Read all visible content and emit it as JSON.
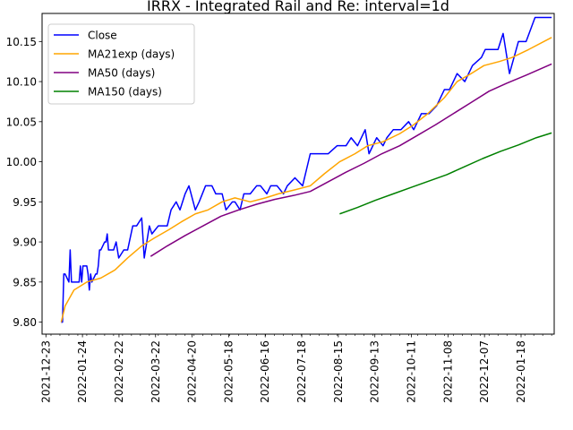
{
  "chart_data": {
    "type": "line",
    "title": "IRRX - Integrated Rail and Re: interval=1d",
    "xlabel": "",
    "ylabel": "",
    "x_ticks": [
      "2021-12-23",
      "2022-01-24",
      "2022-02-22",
      "2022-03-22",
      "2022-04-20",
      "2022-05-18",
      "2022-06-16",
      "2022-07-18",
      "2022-08-15",
      "2022-09-13",
      "2022-10-11",
      "2022-11-08",
      "2022-12-07",
      "2022-01-18"
    ],
    "y_ticks": [
      "9.80",
      "9.85",
      "9.90",
      "9.95",
      "10.00",
      "10.05",
      "10.10",
      "10.15"
    ],
    "ylim": [
      9.785,
      10.185
    ],
    "xlim": [
      "2021-12-20",
      "2023-01-25"
    ],
    "legend_position": "top-left",
    "grid": false,
    "series": [
      {
        "name": "Close",
        "color": "#0000ff",
        "x": [
          "2022-01-04",
          "2022-01-05",
          "2022-01-06",
          "2022-01-07",
          "2022-01-10",
          "2022-01-11",
          "2022-01-12",
          "2022-01-13",
          "2022-01-14",
          "2022-01-18",
          "2022-01-19",
          "2022-01-20",
          "2022-01-21",
          "2022-01-24",
          "2022-01-25",
          "2022-01-26",
          "2022-01-27",
          "2022-01-28",
          "2022-01-31",
          "2022-02-01",
          "2022-02-02",
          "2022-02-03",
          "2022-02-04",
          "2022-02-07",
          "2022-02-08",
          "2022-02-09",
          "2022-02-10",
          "2022-02-14",
          "2022-02-16",
          "2022-02-18",
          "2022-02-22",
          "2022-02-25",
          "2022-03-01",
          "2022-03-04",
          "2022-03-08",
          "2022-03-10",
          "2022-03-14",
          "2022-03-16",
          "2022-03-21",
          "2022-03-24",
          "2022-03-28",
          "2022-03-31",
          "2022-04-04",
          "2022-04-07",
          "2022-04-11",
          "2022-04-14",
          "2022-04-19",
          "2022-04-22",
          "2022-04-27",
          "2022-05-02",
          "2022-05-05",
          "2022-05-10",
          "2022-05-13",
          "2022-05-18",
          "2022-05-20",
          "2022-05-24",
          "2022-05-27",
          "2022-06-01",
          "2022-06-06",
          "2022-06-09",
          "2022-06-14",
          "2022-06-17",
          "2022-06-22",
          "2022-06-27",
          "2022-06-30",
          "2022-07-06",
          "2022-07-12",
          "2022-07-18",
          "2022-07-21",
          "2022-07-26",
          "2022-08-01",
          "2022-08-08",
          "2022-08-15",
          "2022-08-19",
          "2022-08-24",
          "2022-08-30",
          "2022-09-02",
          "2022-09-08",
          "2022-09-13",
          "2022-09-16",
          "2022-09-21",
          "2022-09-27",
          "2022-10-03",
          "2022-10-07",
          "2022-10-13",
          "2022-10-19",
          "2022-10-25",
          "2022-10-31",
          "2022-11-04",
          "2022-11-10",
          "2022-11-16",
          "2022-11-22",
          "2022-11-29",
          "2022-12-02",
          "2022-12-07",
          "2022-12-12",
          "2022-12-16",
          "2022-12-21",
          "2022-12-28",
          "2023-01-03",
          "2023-01-10",
          "2023-01-18",
          "2023-01-23"
        ],
        "y": [
          9.8,
          9.8,
          9.86,
          9.86,
          9.85,
          9.89,
          9.85,
          9.85,
          9.85,
          9.85,
          9.87,
          9.85,
          9.87,
          9.87,
          9.86,
          9.84,
          9.86,
          9.85,
          9.86,
          9.86,
          9.87,
          9.89,
          9.89,
          9.9,
          9.9,
          9.91,
          9.89,
          9.89,
          9.9,
          9.88,
          9.89,
          9.89,
          9.92,
          9.92,
          9.93,
          9.88,
          9.92,
          9.91,
          9.92,
          9.92,
          9.92,
          9.94,
          9.95,
          9.94,
          9.96,
          9.97,
          9.94,
          9.95,
          9.97,
          9.97,
          9.96,
          9.96,
          9.94,
          9.95,
          9.95,
          9.94,
          9.96,
          9.96,
          9.97,
          9.97,
          9.96,
          9.97,
          9.97,
          9.96,
          9.97,
          9.98,
          9.97,
          10.01,
          10.01,
          10.01,
          10.01,
          10.02,
          10.02,
          10.03,
          10.02,
          10.04,
          10.01,
          10.03,
          10.02,
          10.03,
          10.04,
          10.04,
          10.05,
          10.04,
          10.06,
          10.06,
          10.07,
          10.09,
          10.09,
          10.11,
          10.1,
          10.12,
          10.13,
          10.14,
          10.14,
          10.14,
          10.16,
          10.11,
          10.15,
          10.15,
          10.18,
          10.18,
          10.18
        ]
      },
      {
        "name": "MA21exp (days)",
        "color": "#ffa500",
        "x": [
          "2022-01-04",
          "2022-01-07",
          "2022-01-14",
          "2022-01-24",
          "2022-02-04",
          "2022-02-15",
          "2022-02-25",
          "2022-03-08",
          "2022-03-18",
          "2022-03-29",
          "2022-04-08",
          "2022-04-19",
          "2022-04-29",
          "2022-05-10",
          "2022-05-20",
          "2022-06-01",
          "2022-06-13",
          "2022-06-23",
          "2022-07-06",
          "2022-07-18",
          "2022-07-29",
          "2022-08-10",
          "2022-08-22",
          "2022-09-01",
          "2022-09-13",
          "2022-09-26",
          "2022-10-06",
          "2022-10-18",
          "2022-10-31",
          "2022-11-10",
          "2022-11-21",
          "2022-12-01",
          "2022-12-13",
          "2022-12-23",
          "2023-01-05",
          "2023-01-23"
        ],
        "y": [
          9.8,
          9.82,
          9.84,
          9.85,
          9.855,
          9.865,
          9.88,
          9.895,
          9.905,
          9.915,
          9.925,
          9.935,
          9.94,
          9.95,
          9.955,
          9.95,
          9.955,
          9.96,
          9.965,
          9.97,
          9.985,
          10.0,
          10.01,
          10.02,
          10.025,
          10.035,
          10.045,
          10.06,
          10.08,
          10.1,
          10.11,
          10.12,
          10.125,
          10.13,
          10.14,
          10.155
        ]
      },
      {
        "name": "MA50 (days)",
        "color": "#800080",
        "x": [
          "2022-03-15",
          "2022-03-28",
          "2022-04-11",
          "2022-04-25",
          "2022-05-09",
          "2022-05-23",
          "2022-06-06",
          "2022-06-20",
          "2022-07-05",
          "2022-07-18",
          "2022-08-01",
          "2022-08-15",
          "2022-08-29",
          "2022-09-12",
          "2022-09-26",
          "2022-10-10",
          "2022-10-24",
          "2022-11-07",
          "2022-11-21",
          "2022-12-05",
          "2022-12-19",
          "2023-01-03",
          "2023-01-23"
        ],
        "y": [
          9.882,
          9.895,
          9.908,
          9.92,
          9.932,
          9.94,
          9.947,
          9.953,
          9.958,
          9.963,
          9.975,
          9.987,
          9.998,
          10.01,
          10.02,
          10.033,
          10.046,
          10.06,
          10.074,
          10.088,
          10.098,
          10.108,
          10.122
        ]
      },
      {
        "name": "MA150 (days)",
        "color": "#008000",
        "x": [
          "2022-08-10",
          "2022-08-24",
          "2022-09-07",
          "2022-09-21",
          "2022-10-05",
          "2022-10-19",
          "2022-11-02",
          "2022-11-16",
          "2022-11-30",
          "2022-12-14",
          "2022-12-28",
          "2023-01-11",
          "2023-01-23"
        ],
        "y": [
          9.935,
          9.943,
          9.952,
          9.96,
          9.968,
          9.976,
          9.984,
          9.994,
          10.004,
          10.013,
          10.021,
          10.03,
          10.036
        ]
      }
    ]
  }
}
